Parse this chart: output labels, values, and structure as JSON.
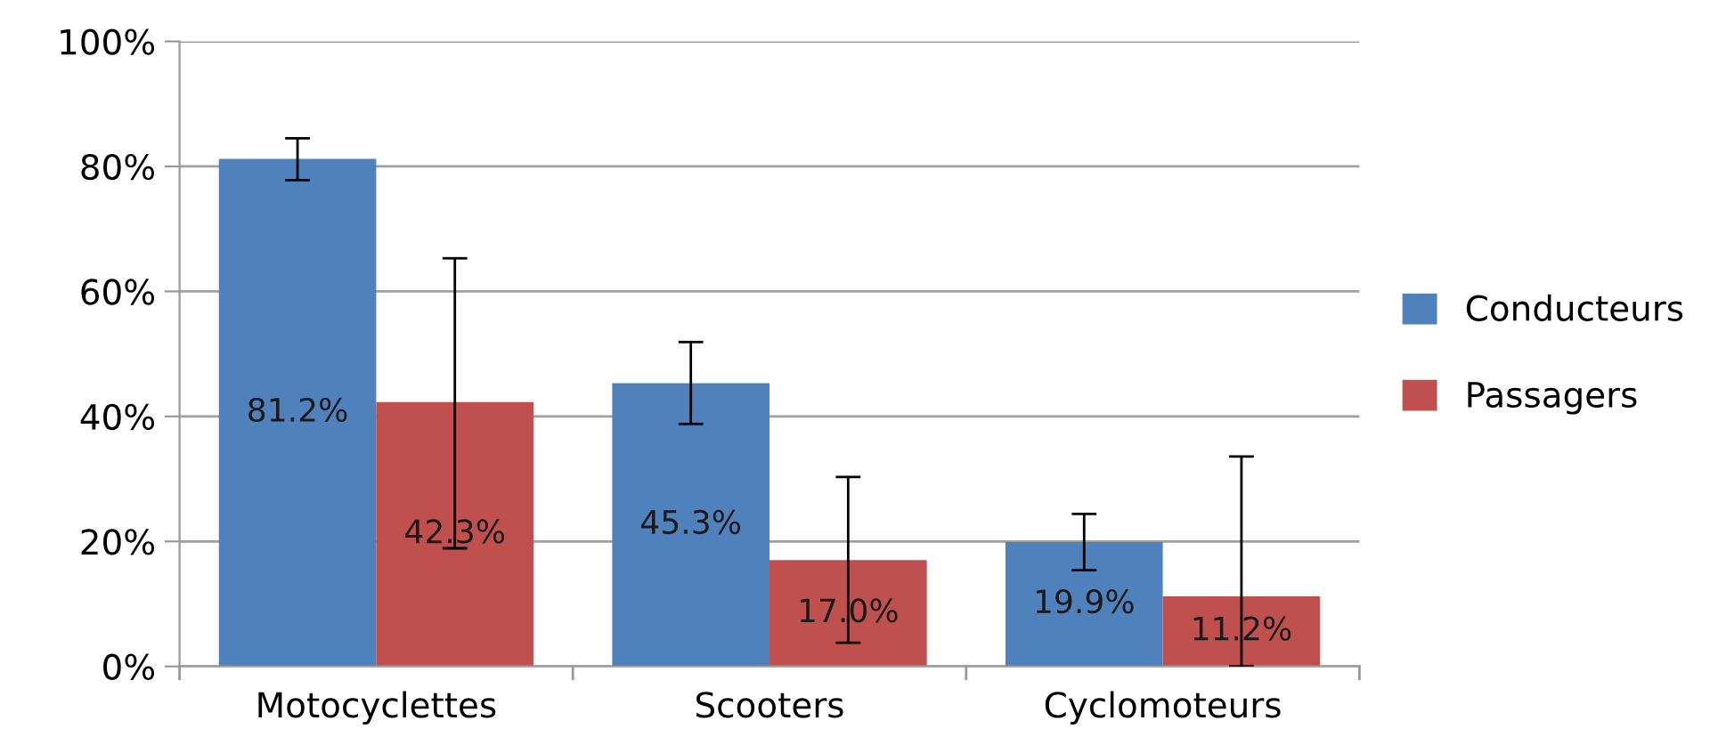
{
  "chart_data": {
    "type": "bar",
    "categories": [
      "Motocyclettes",
      "Scooters",
      "Cyclomoteurs"
    ],
    "series": [
      {
        "name": "Conducteurs",
        "color": "#4f81bd",
        "values": [
          81.2,
          45.3,
          19.9
        ],
        "errors": [
          [
            77.8,
            84.5
          ],
          [
            38.8,
            51.9
          ],
          [
            15.4,
            24.4
          ]
        ],
        "value_labels": [
          "81.2%",
          "45.3%",
          "19.9%"
        ]
      },
      {
        "name": "Passagers",
        "color": "#c0504d",
        "values": [
          42.3,
          17.0,
          11.2
        ],
        "errors": [
          [
            18.9,
            65.3
          ],
          [
            3.8,
            30.3
          ],
          [
            0,
            33.6
          ]
        ],
        "value_labels": [
          "42.3%",
          "17.0%",
          "11.2%"
        ]
      }
    ],
    "ylim": [
      0,
      100
    ],
    "yticks": [
      {
        "value": 0,
        "label": "0%"
      },
      {
        "value": 20,
        "label": "20%"
      },
      {
        "value": 40,
        "label": "40%"
      },
      {
        "value": 60,
        "label": "60%"
      },
      {
        "value": 80,
        "label": "80%"
      },
      {
        "value": 100,
        "label": "100%"
      }
    ],
    "grid": "y",
    "legend": "right"
  }
}
